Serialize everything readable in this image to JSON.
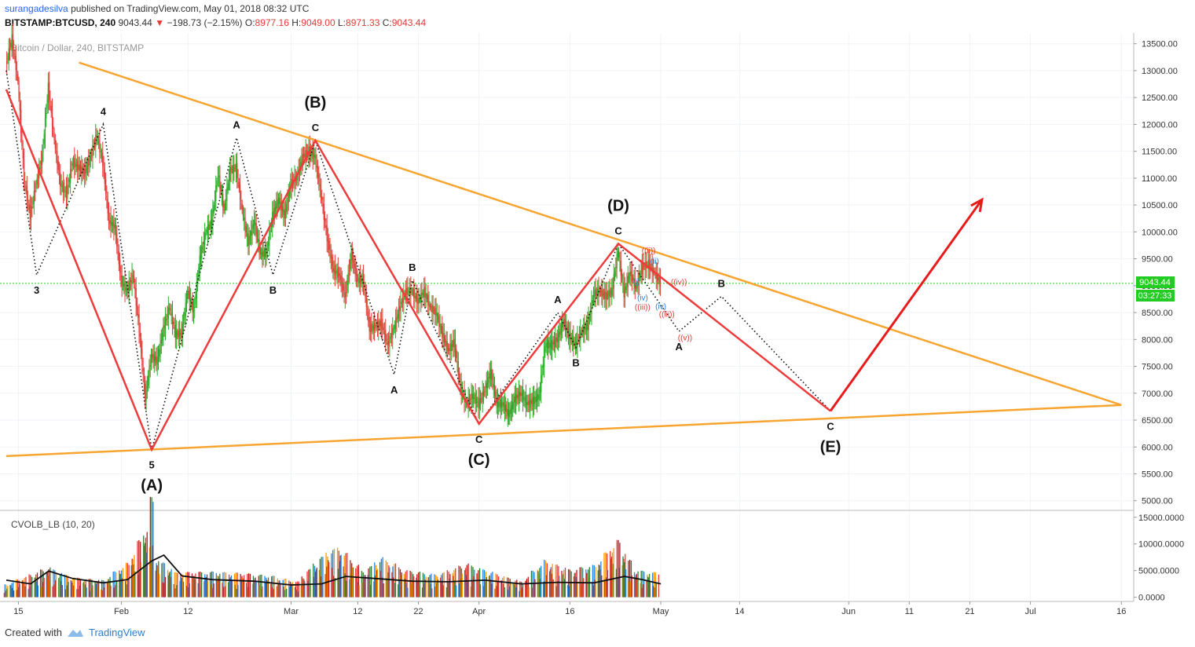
{
  "header": {
    "author": "surangadesilva",
    "published_text": "published on TradingView.com, May 01, 2018 08:32 UTC",
    "symbol": "BITSTAMP:BTCUSD, 240",
    "last": "9043.44",
    "change": "−198.73 (−2.15%)",
    "o_label": "O:",
    "o_value": "8977.16",
    "h_label": "H:",
    "h_value": "9049.00",
    "l_label": "L:",
    "l_value": "8971.33",
    "c_label": "C:",
    "c_value": "9043.44"
  },
  "watermark": "Bitcoin / Dollar, 240, BITSTAMP",
  "price_tag": "9043.44",
  "time_tag": "03:27:33",
  "indicator_label": "CVOLB_LB (10, 20)",
  "footer": {
    "created_with": "Created with",
    "brand": "TradingView"
  },
  "colors": {
    "wave": "#ee3b3b",
    "trendline": "#f7a531",
    "candle_up": "#22b022",
    "candle_down": "#e53935",
    "price_tag_bg": "#22cc22",
    "arrow": "#e81b1b"
  },
  "chart_data": {
    "type": "candlestick",
    "title": "Bitcoin / Dollar, 240, BITSTAMP",
    "price_axis": {
      "ticks": [
        5000,
        5500,
        6000,
        6500,
        7000,
        7500,
        8000,
        8500,
        9000,
        9500,
        10000,
        10500,
        11000,
        11500,
        12000,
        12500,
        13000,
        13500
      ],
      "tick_labels": [
        "5000.00",
        "5500.00",
        "6000.00",
        "6500.00",
        "7000.00",
        "7500.00",
        "8000.00",
        "8500.00",
        "9000.00",
        "9500.00",
        "10000.00",
        "10500.00",
        "11000.00",
        "11500.00",
        "12000.00",
        "12500.00",
        "13000.00",
        "13500.00"
      ],
      "range": [
        4850,
        13700
      ]
    },
    "time_axis": {
      "labels": [
        "15",
        "Feb",
        "12",
        "Mar",
        "12",
        "22",
        "Apr",
        "16",
        "May",
        "14",
        "Jun",
        "11",
        "21",
        "Jul",
        "16"
      ],
      "start": "2018-01-13",
      "end": "2018-07-17"
    },
    "last_price": 9043.44,
    "wave_path": [
      {
        "date": "2018-01-13",
        "price": 12650
      },
      {
        "date": "2018-02-06",
        "price": 5950,
        "label": "(A)"
      },
      {
        "date": "2018-03-05",
        "price": 11700,
        "label": "(B)"
      },
      {
        "date": "2018-04-01",
        "price": 6430,
        "label": "(C)"
      },
      {
        "date": "2018-04-24",
        "price": 9780,
        "label": "(D)"
      },
      {
        "date": "2018-05-29",
        "price": 6670,
        "label": "(E)"
      }
    ],
    "projection_arrow": [
      {
        "date": "2018-05-29",
        "price": 6670
      },
      {
        "date": "2018-06-23",
        "price": 10600
      }
    ],
    "subwave_path": [
      {
        "date": "2018-01-13",
        "price": 13000
      },
      {
        "date": "2018-01-18",
        "price": 9200,
        "label": "3"
      },
      {
        "date": "2018-01-29",
        "price": 12000,
        "label": "4"
      },
      {
        "date": "2018-02-06",
        "price": 5950,
        "label": "5"
      },
      {
        "date": "2018-02-20",
        "price": 11750,
        "label": "A"
      },
      {
        "date": "2018-02-26",
        "price": 9200,
        "label": "B"
      },
      {
        "date": "2018-03-05",
        "price": 11700,
        "label": "C"
      },
      {
        "date": "2018-03-18",
        "price": 7350,
        "label": "A"
      },
      {
        "date": "2018-03-21",
        "price": 9100,
        "label": "B"
      },
      {
        "date": "2018-04-01",
        "price": 6430,
        "label": "C"
      },
      {
        "date": "2018-04-14",
        "price": 8500,
        "label": "A"
      },
      {
        "date": "2018-04-17",
        "price": 7850,
        "label": "B"
      },
      {
        "date": "2018-04-24",
        "price": 9780,
        "label": "C"
      },
      {
        "date": "2018-05-04",
        "price": 8150,
        "label": "A"
      },
      {
        "date": "2018-05-11",
        "price": 8800,
        "label": "B"
      },
      {
        "date": "2018-05-29",
        "price": 6670,
        "label": "C"
      }
    ],
    "upper_trendline": [
      {
        "date": "2018-01-25",
        "price": 13150
      },
      {
        "date": "2018-07-16",
        "price": 6780
      }
    ],
    "lower_trendline": [
      {
        "date": "2018-01-13",
        "price": 5830
      },
      {
        "date": "2018-07-16",
        "price": 6780
      }
    ],
    "minor_labels": [
      {
        "date": "2018-04-29",
        "price": 9600,
        "text": "((ii))",
        "color": "#e53935"
      },
      {
        "date": "2018-05-04",
        "price": 9020,
        "text": "((iv))",
        "color": "#e53935"
      },
      {
        "date": "2018-04-28",
        "price": 8550,
        "text": "((iii))",
        "color": "#e53935"
      },
      {
        "date": "2018-05-02",
        "price": 8420,
        "text": "((iii))",
        "color": "#e53935"
      },
      {
        "date": "2018-05-05",
        "price": 7980,
        "text": "((v))",
        "color": "#e53935"
      },
      {
        "date": "2018-04-28",
        "price": 8730,
        "text": "(iv)",
        "color": "#2f7dd0"
      },
      {
        "date": "2018-04-30",
        "price": 9410,
        "text": "(ii)",
        "color": "#2f7dd0"
      },
      {
        "date": "2018-05-01",
        "price": 8570,
        "text": "(iv)",
        "color": "#2f7dd0"
      },
      {
        "date": "2018-04-27",
        "price": 9030,
        "text": "(i)",
        "color": "#2f7dd0"
      }
    ],
    "candles": [
      {
        "date": "2018-01-13",
        "close": 13100
      },
      {
        "date": "2018-01-14",
        "close": 13600
      },
      {
        "date": "2018-01-15",
        "close": 12800
      },
      {
        "date": "2018-01-16",
        "close": 11000
      },
      {
        "date": "2018-01-17",
        "close": 10300
      },
      {
        "date": "2018-01-18",
        "close": 10900
      },
      {
        "date": "2018-01-19",
        "close": 11400
      },
      {
        "date": "2018-01-20",
        "close": 12700
      },
      {
        "date": "2018-01-21",
        "close": 11700
      },
      {
        "date": "2018-01-22",
        "close": 10900
      },
      {
        "date": "2018-01-23",
        "close": 10700
      },
      {
        "date": "2018-01-24",
        "close": 11300
      },
      {
        "date": "2018-01-25",
        "close": 11200
      },
      {
        "date": "2018-01-26",
        "close": 11100
      },
      {
        "date": "2018-01-27",
        "close": 11400
      },
      {
        "date": "2018-01-28",
        "close": 11800
      },
      {
        "date": "2018-01-29",
        "close": 11300
      },
      {
        "date": "2018-01-30",
        "close": 10200
      },
      {
        "date": "2018-01-31",
        "close": 10100
      },
      {
        "date": "2018-02-01",
        "close": 9100
      },
      {
        "date": "2018-02-02",
        "close": 8900
      },
      {
        "date": "2018-02-03",
        "close": 9200
      },
      {
        "date": "2018-02-04",
        "close": 8200
      },
      {
        "date": "2018-02-05",
        "close": 6900
      },
      {
        "date": "2018-02-06",
        "close": 7700
      },
      {
        "date": "2018-02-07",
        "close": 7600
      },
      {
        "date": "2018-02-08",
        "close": 8200
      },
      {
        "date": "2018-02-09",
        "close": 8600
      },
      {
        "date": "2018-02-10",
        "close": 8100
      },
      {
        "date": "2018-02-11",
        "close": 8100
      },
      {
        "date": "2018-02-12",
        "close": 8900
      },
      {
        "date": "2018-02-13",
        "close": 8500
      },
      {
        "date": "2018-02-14",
        "close": 9500
      },
      {
        "date": "2018-02-15",
        "close": 10000
      },
      {
        "date": "2018-02-16",
        "close": 10200
      },
      {
        "date": "2018-02-17",
        "close": 11100
      },
      {
        "date": "2018-02-18",
        "close": 10400
      },
      {
        "date": "2018-02-19",
        "close": 11150
      },
      {
        "date": "2018-02-20",
        "close": 11200
      },
      {
        "date": "2018-02-21",
        "close": 10400
      },
      {
        "date": "2018-02-22",
        "close": 9800
      },
      {
        "date": "2018-02-23",
        "close": 10200
      },
      {
        "date": "2018-02-24",
        "close": 9600
      },
      {
        "date": "2018-02-25",
        "close": 9600
      },
      {
        "date": "2018-02-26",
        "close": 10300
      },
      {
        "date": "2018-02-27",
        "close": 10600
      },
      {
        "date": "2018-02-28",
        "close": 10300
      },
      {
        "date": "2018-03-01",
        "close": 10900
      },
      {
        "date": "2018-03-02",
        "close": 11000
      },
      {
        "date": "2018-03-03",
        "close": 11400
      },
      {
        "date": "2018-03-04",
        "close": 11500
      },
      {
        "date": "2018-03-05",
        "close": 11400
      },
      {
        "date": "2018-03-06",
        "close": 10700
      },
      {
        "date": "2018-03-07",
        "close": 9900
      },
      {
        "date": "2018-03-08",
        "close": 9300
      },
      {
        "date": "2018-03-09",
        "close": 9200
      },
      {
        "date": "2018-03-10",
        "close": 8800
      },
      {
        "date": "2018-03-11",
        "close": 9600
      },
      {
        "date": "2018-03-12",
        "close": 9100
      },
      {
        "date": "2018-03-13",
        "close": 9100
      },
      {
        "date": "2018-03-14",
        "close": 8200
      },
      {
        "date": "2018-03-15",
        "close": 8250
      },
      {
        "date": "2018-03-16",
        "close": 8300
      },
      {
        "date": "2018-03-17",
        "close": 7900
      },
      {
        "date": "2018-03-18",
        "close": 8200
      },
      {
        "date": "2018-03-19",
        "close": 8600
      },
      {
        "date": "2018-03-20",
        "close": 8900
      },
      {
        "date": "2018-03-21",
        "close": 8900
      },
      {
        "date": "2018-03-22",
        "close": 8700
      },
      {
        "date": "2018-03-23",
        "close": 8900
      },
      {
        "date": "2018-03-24",
        "close": 8600
      },
      {
        "date": "2018-03-25",
        "close": 8500
      },
      {
        "date": "2018-03-26",
        "close": 8100
      },
      {
        "date": "2018-03-27",
        "close": 7800
      },
      {
        "date": "2018-03-28",
        "close": 7950
      },
      {
        "date": "2018-03-29",
        "close": 7100
      },
      {
        "date": "2018-03-30",
        "close": 6800
      },
      {
        "date": "2018-03-31",
        "close": 6950
      },
      {
        "date": "2018-04-01",
        "close": 6800
      },
      {
        "date": "2018-04-02",
        "close": 7050
      },
      {
        "date": "2018-04-03",
        "close": 7400
      },
      {
        "date": "2018-04-04",
        "close": 6800
      },
      {
        "date": "2018-04-05",
        "close": 6800
      },
      {
        "date": "2018-04-06",
        "close": 6600
      },
      {
        "date": "2018-04-07",
        "close": 6900
      },
      {
        "date": "2018-04-08",
        "close": 7000
      },
      {
        "date": "2018-04-09",
        "close": 6800
      },
      {
        "date": "2018-04-10",
        "close": 6850
      },
      {
        "date": "2018-04-11",
        "close": 6950
      },
      {
        "date": "2018-04-12",
        "close": 7900
      },
      {
        "date": "2018-04-13",
        "close": 7900
      },
      {
        "date": "2018-04-14",
        "close": 8000
      },
      {
        "date": "2018-04-15",
        "close": 8350
      },
      {
        "date": "2018-04-16",
        "close": 8050
      },
      {
        "date": "2018-04-17",
        "close": 7900
      },
      {
        "date": "2018-04-18",
        "close": 8150
      },
      {
        "date": "2018-04-19",
        "close": 8250
      },
      {
        "date": "2018-04-20",
        "close": 8850
      },
      {
        "date": "2018-04-21",
        "close": 8900
      },
      {
        "date": "2018-04-22",
        "close": 8800
      },
      {
        "date": "2018-04-23",
        "close": 8900
      },
      {
        "date": "2018-04-24",
        "close": 9650
      },
      {
        "date": "2018-04-25",
        "close": 8850
      },
      {
        "date": "2018-04-26",
        "close": 9250
      },
      {
        "date": "2018-04-27",
        "close": 8950
      },
      {
        "date": "2018-04-28",
        "close": 9350
      },
      {
        "date": "2018-04-29",
        "close": 9400
      },
      {
        "date": "2018-04-30",
        "close": 9250
      },
      {
        "date": "2018-05-01",
        "close": 9043
      }
    ],
    "volume_axis": {
      "ticks": [
        0,
        5000,
        10000,
        15000
      ],
      "tick_labels": [
        "0.0000",
        "5000.0000",
        "10000.0000",
        "15000.0000"
      ],
      "range": [
        -500,
        16000
      ]
    },
    "volume_points": [
      {
        "date": "2018-01-13",
        "value": 1800
      },
      {
        "date": "2018-01-17",
        "value": 3200
      },
      {
        "date": "2018-01-20",
        "value": 4200
      },
      {
        "date": "2018-01-24",
        "value": 2800
      },
      {
        "date": "2018-01-29",
        "value": 2400
      },
      {
        "date": "2018-02-02",
        "value": 4800
      },
      {
        "date": "2018-02-05",
        "value": 9500
      },
      {
        "date": "2018-02-06",
        "value": 14000
      },
      {
        "date": "2018-02-07",
        "value": 5500
      },
      {
        "date": "2018-02-10",
        "value": 3500
      },
      {
        "date": "2018-02-16",
        "value": 3600
      },
      {
        "date": "2018-02-21",
        "value": 3400
      },
      {
        "date": "2018-02-26",
        "value": 3000
      },
      {
        "date": "2018-03-02",
        "value": 2200
      },
      {
        "date": "2018-03-07",
        "value": 6500
      },
      {
        "date": "2018-03-09",
        "value": 7000
      },
      {
        "date": "2018-03-13",
        "value": 3700
      },
      {
        "date": "2018-03-16",
        "value": 5600
      },
      {
        "date": "2018-03-20",
        "value": 3800
      },
      {
        "date": "2018-03-25",
        "value": 3200
      },
      {
        "date": "2018-03-30",
        "value": 4700
      },
      {
        "date": "2018-04-04",
        "value": 3300
      },
      {
        "date": "2018-04-08",
        "value": 2200
      },
      {
        "date": "2018-04-12",
        "value": 5200
      },
      {
        "date": "2018-04-16",
        "value": 3900
      },
      {
        "date": "2018-04-20",
        "value": 4500
      },
      {
        "date": "2018-04-24",
        "value": 8000
      },
      {
        "date": "2018-04-27",
        "value": 3800
      },
      {
        "date": "2018-05-01",
        "value": 3400
      }
    ],
    "volume_ma": [
      {
        "date": "2018-01-13",
        "value": 3200
      },
      {
        "date": "2018-01-17",
        "value": 2500
      },
      {
        "date": "2018-01-20",
        "value": 4900
      },
      {
        "date": "2018-01-24",
        "value": 3500
      },
      {
        "date": "2018-01-29",
        "value": 2700
      },
      {
        "date": "2018-02-02",
        "value": 3300
      },
      {
        "date": "2018-02-06",
        "value": 6800
      },
      {
        "date": "2018-02-08",
        "value": 7900
      },
      {
        "date": "2018-02-11",
        "value": 4000
      },
      {
        "date": "2018-02-16",
        "value": 3300
      },
      {
        "date": "2018-02-23",
        "value": 3000
      },
      {
        "date": "2018-03-01",
        "value": 2300
      },
      {
        "date": "2018-03-06",
        "value": 2500
      },
      {
        "date": "2018-03-10",
        "value": 3900
      },
      {
        "date": "2018-03-15",
        "value": 3500
      },
      {
        "date": "2018-03-21",
        "value": 3000
      },
      {
        "date": "2018-03-27",
        "value": 2900
      },
      {
        "date": "2018-04-02",
        "value": 3200
      },
      {
        "date": "2018-04-08",
        "value": 2500
      },
      {
        "date": "2018-04-14",
        "value": 2800
      },
      {
        "date": "2018-04-20",
        "value": 2700
      },
      {
        "date": "2018-04-25",
        "value": 3900
      },
      {
        "date": "2018-04-28",
        "value": 3300
      },
      {
        "date": "2018-05-01",
        "value": 2500
      }
    ]
  }
}
